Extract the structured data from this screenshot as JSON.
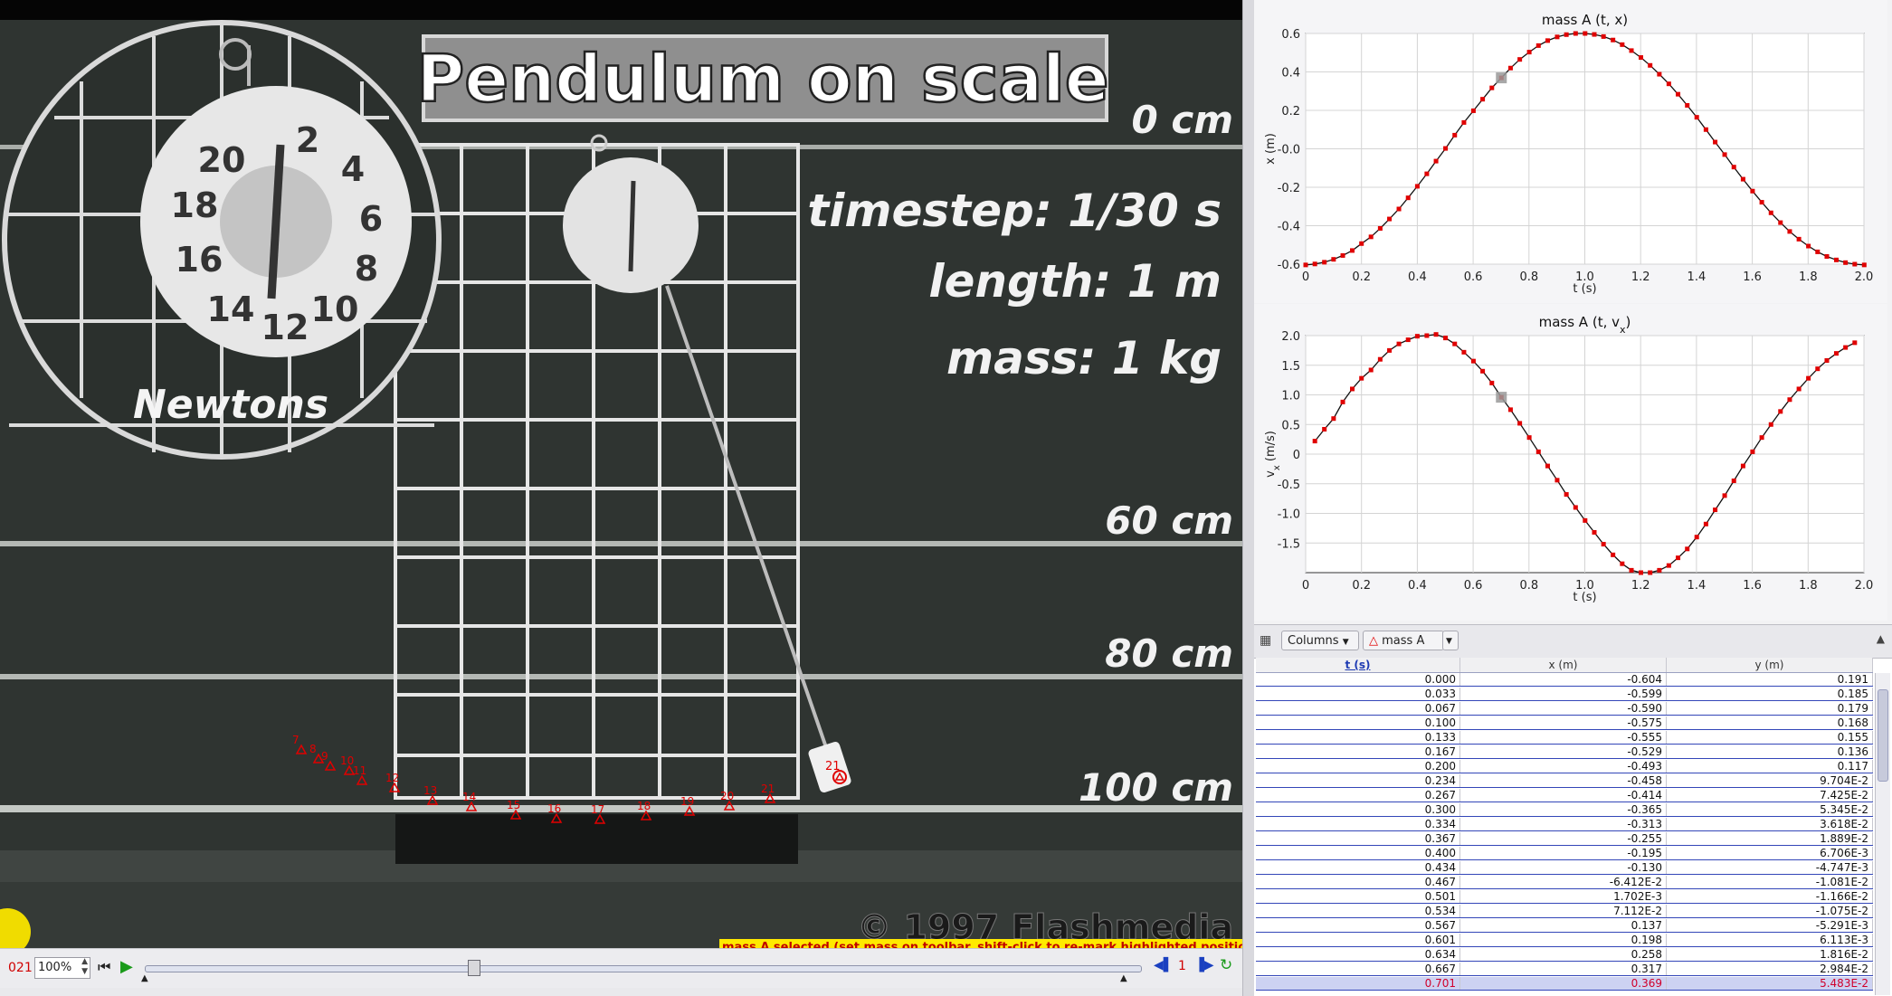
{
  "video": {
    "title_banner": "Pendulum on scale",
    "scale_units": "Newtons",
    "dial_numbers": [
      "20",
      "2",
      "4",
      "6",
      "8",
      "10",
      "12",
      "14",
      "16",
      "18"
    ],
    "distance_labels": [
      "0 cm",
      "60 cm",
      "80 cm",
      "100 cm"
    ],
    "info": [
      "timestep:  1/30  s",
      "length:  1  m",
      "mass:  1  kg"
    ],
    "copyright": "© 1997 Flashmedia",
    "frame_marks": [
      "7",
      "8",
      "9",
      "10",
      "11",
      "12",
      "13",
      "14",
      "15",
      "16",
      "17",
      "18",
      "19",
      "20",
      "21"
    ],
    "current_frame_mark": "21"
  },
  "status_message": "mass A selected (set mass on toolbar, shift-click to re-mark highlighted position)",
  "player": {
    "frame_counter": "021",
    "zoom": "100%",
    "step_size": "1",
    "slider_position": 0.33
  },
  "plots": [
    {
      "title": "mass A (t, x)",
      "ylabel": "x (m)",
      "xlabel": "t (s)",
      "xticks": [
        "0",
        "0.2",
        "0.4",
        "0.6",
        "0.8",
        "1.0",
        "1.2",
        "1.4",
        "1.6",
        "1.8",
        "2.0"
      ],
      "yticks": [
        "0.6",
        "0.4",
        "0.2",
        "-0.0",
        "-0.2",
        "-0.4",
        "-0.6"
      ]
    },
    {
      "title": "mass A (t, v",
      "title_sub": "x",
      "title_end": ")",
      "ylabel": "v",
      "ylabel_sub": "x",
      "ylabel_end": " (m/s)",
      "xlabel": "t (s)",
      "xticks": [
        "0",
        "0.2",
        "0.4",
        "0.6",
        "0.8",
        "1.0",
        "1.2",
        "1.4",
        "1.6",
        "1.8",
        "2.0"
      ],
      "yticks": [
        "2.0",
        "1.5",
        "1.0",
        "0.5",
        "0",
        "-0.5",
        "-1.0",
        "-1.5"
      ]
    }
  ],
  "chart_data": [
    {
      "type": "line",
      "title": "mass A (t, x)",
      "xlabel": "t (s)",
      "ylabel": "x (m)",
      "xlim": [
        0,
        2.0
      ],
      "ylim": [
        -0.6,
        0.6
      ],
      "grid": true,
      "highlight_x": 0.701,
      "series": [
        {
          "x": [
            0.0,
            0.033,
            0.067,
            0.1,
            0.133,
            0.167,
            0.2,
            0.234,
            0.267,
            0.3,
            0.334,
            0.367,
            0.4,
            0.434,
            0.467,
            0.501,
            0.534,
            0.567,
            0.601,
            0.634,
            0.667,
            0.701,
            0.734,
            0.767,
            0.801,
            0.834,
            0.867,
            0.901,
            0.934,
            0.967,
            1.001,
            1.034,
            1.067,
            1.101,
            1.134,
            1.167,
            1.201,
            1.234,
            1.267,
            1.301,
            1.334,
            1.367,
            1.401,
            1.434,
            1.467,
            1.501,
            1.534,
            1.567,
            1.601,
            1.634,
            1.667,
            1.701,
            1.734,
            1.767,
            1.801,
            1.834,
            1.867,
            1.901,
            1.934,
            1.967,
            2.001
          ],
          "y": [
            -0.604,
            -0.599,
            -0.59,
            -0.575,
            -0.555,
            -0.529,
            -0.493,
            -0.458,
            -0.414,
            -0.365,
            -0.313,
            -0.255,
            -0.195,
            -0.13,
            -0.064,
            0.002,
            0.071,
            0.137,
            0.198,
            0.258,
            0.317,
            0.369,
            0.42,
            0.465,
            0.503,
            0.537,
            0.563,
            0.582,
            0.594,
            0.6,
            0.6,
            0.595,
            0.584,
            0.566,
            0.542,
            0.511,
            0.475,
            0.434,
            0.388,
            0.338,
            0.284,
            0.226,
            0.164,
            0.1,
            0.035,
            -0.03,
            -0.095,
            -0.158,
            -0.22,
            -0.278,
            -0.333,
            -0.384,
            -0.43,
            -0.47,
            -0.506,
            -0.536,
            -0.56,
            -0.578,
            -0.592,
            -0.6,
            -0.604
          ]
        }
      ]
    },
    {
      "type": "line",
      "title": "mass A (t, vx)",
      "xlabel": "t (s)",
      "ylabel": "vx (m/s)",
      "xlim": [
        0,
        2.0
      ],
      "ylim": [
        -2.0,
        2.0
      ],
      "grid": true,
      "highlight_x": 0.701,
      "series": [
        {
          "x": [
            0.033,
            0.067,
            0.1,
            0.133,
            0.167,
            0.2,
            0.234,
            0.267,
            0.3,
            0.334,
            0.367,
            0.4,
            0.434,
            0.467,
            0.501,
            0.534,
            0.567,
            0.601,
            0.634,
            0.667,
            0.701,
            0.734,
            0.767,
            0.801,
            0.834,
            0.867,
            0.901,
            0.934,
            0.967,
            1.001,
            1.034,
            1.067,
            1.101,
            1.134,
            1.167,
            1.201,
            1.234,
            1.267,
            1.301,
            1.334,
            1.367,
            1.401,
            1.434,
            1.467,
            1.501,
            1.534,
            1.567,
            1.601,
            1.634,
            1.667,
            1.701,
            1.734,
            1.767,
            1.801,
            1.834,
            1.867,
            1.901,
            1.934,
            1.967
          ],
          "y": [
            0.22,
            0.42,
            0.6,
            0.88,
            1.1,
            1.28,
            1.42,
            1.6,
            1.75,
            1.86,
            1.93,
            1.99,
            2.0,
            2.02,
            1.96,
            1.86,
            1.72,
            1.57,
            1.4,
            1.2,
            0.96,
            0.75,
            0.52,
            0.28,
            0.04,
            -0.2,
            -0.44,
            -0.68,
            -0.9,
            -1.12,
            -1.32,
            -1.52,
            -1.7,
            -1.85,
            -1.96,
            -2.0,
            -2.0,
            -1.96,
            -1.88,
            -1.75,
            -1.6,
            -1.4,
            -1.18,
            -0.94,
            -0.7,
            -0.45,
            -0.2,
            0.04,
            0.28,
            0.5,
            0.72,
            0.92,
            1.1,
            1.28,
            1.44,
            1.58,
            1.7,
            1.8,
            1.88
          ]
        }
      ]
    }
  ],
  "table": {
    "toolbar": {
      "columns_label": "Columns",
      "track_label": "mass A"
    },
    "headers": [
      "t (s)",
      "x (m)",
      "y (m)"
    ],
    "rows": [
      [
        "0.000",
        "-0.604",
        "0.191"
      ],
      [
        "0.033",
        "-0.599",
        "0.185"
      ],
      [
        "0.067",
        "-0.590",
        "0.179"
      ],
      [
        "0.100",
        "-0.575",
        "0.168"
      ],
      [
        "0.133",
        "-0.555",
        "0.155"
      ],
      [
        "0.167",
        "-0.529",
        "0.136"
      ],
      [
        "0.200",
        "-0.493",
        "0.117"
      ],
      [
        "0.234",
        "-0.458",
        "9.704E-2"
      ],
      [
        "0.267",
        "-0.414",
        "7.425E-2"
      ],
      [
        "0.300",
        "-0.365",
        "5.345E-2"
      ],
      [
        "0.334",
        "-0.313",
        "3.618E-2"
      ],
      [
        "0.367",
        "-0.255",
        "1.889E-2"
      ],
      [
        "0.400",
        "-0.195",
        "6.706E-3"
      ],
      [
        "0.434",
        "-0.130",
        "-4.747E-3"
      ],
      [
        "0.467",
        "-6.412E-2",
        "-1.081E-2"
      ],
      [
        "0.501",
        "1.702E-3",
        "-1.166E-2"
      ],
      [
        "0.534",
        "7.112E-2",
        "-1.075E-2"
      ],
      [
        "0.567",
        "0.137",
        "-5.291E-3"
      ],
      [
        "0.601",
        "0.198",
        "6.113E-3"
      ],
      [
        "0.634",
        "0.258",
        "1.816E-2"
      ],
      [
        "0.667",
        "0.317",
        "2.984E-2"
      ],
      [
        "0.701",
        "0.369",
        "5.483E-2"
      ]
    ],
    "selected_row": 21
  },
  "colors": {
    "track": "#e00000",
    "selection": "#cdd2f2",
    "table_rule": "#3346b8",
    "status_bg": "#ffea00"
  }
}
